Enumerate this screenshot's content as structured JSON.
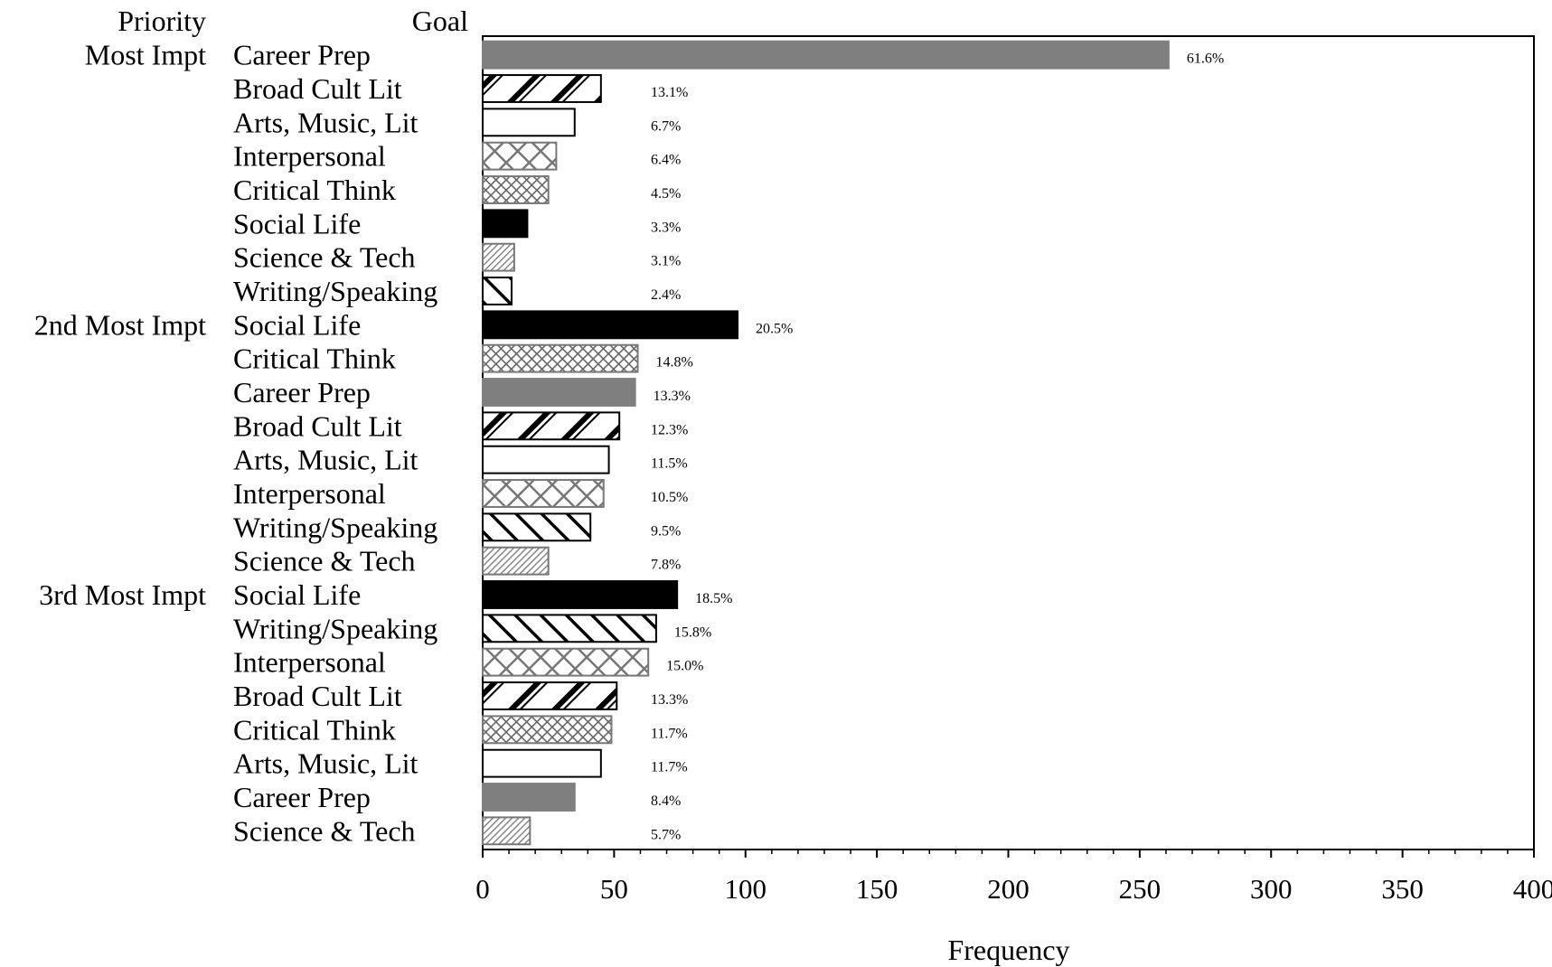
{
  "chart_data": {
    "type": "bar",
    "orientation": "horizontal",
    "headers": {
      "priority": "Priority",
      "goal": "Goal"
    },
    "xlabel": "Frequency",
    "xlim": [
      0,
      400
    ],
    "xticks": [
      "0",
      "50",
      "100",
      "150",
      "200",
      "250",
      "300",
      "350",
      "400"
    ],
    "grid": false,
    "groups": [
      {
        "priority": "Most Impt",
        "rows": [
          {
            "goal": "Career Prep",
            "value": 261,
            "pct": "61.6%",
            "pattern": "gray"
          },
          {
            "goal": "Broad Cult Lit",
            "value": 45,
            "pct": "13.1%",
            "pattern": "diag-bold"
          },
          {
            "goal": "Arts, Music, Lit",
            "value": 35,
            "pct": "6.7%",
            "pattern": "white"
          },
          {
            "goal": "Interpersonal",
            "value": 28,
            "pct": "6.4%",
            "pattern": "cross-large"
          },
          {
            "goal": "Critical Think",
            "value": 25,
            "pct": "4.5%",
            "pattern": "cross-small"
          },
          {
            "goal": "Social Life",
            "value": 17,
            "pct": "3.3%",
            "pattern": "black"
          },
          {
            "goal": "Science & Tech",
            "value": 12,
            "pct": "3.1%",
            "pattern": "diag-fine"
          },
          {
            "goal": "Writing/Speaking",
            "value": 11,
            "pct": "2.4%",
            "pattern": "backdiag"
          }
        ]
      },
      {
        "priority": "2nd Most Impt",
        "rows": [
          {
            "goal": "Social Life",
            "value": 97,
            "pct": "20.5%",
            "pattern": "black"
          },
          {
            "goal": "Critical Think",
            "value": 59,
            "pct": "14.8%",
            "pattern": "cross-small"
          },
          {
            "goal": "Career Prep",
            "value": 58,
            "pct": "13.3%",
            "pattern": "gray"
          },
          {
            "goal": "Broad Cult Lit",
            "value": 52,
            "pct": "12.3%",
            "pattern": "diag-bold"
          },
          {
            "goal": "Arts, Music, Lit",
            "value": 48,
            "pct": "11.5%",
            "pattern": "white"
          },
          {
            "goal": "Interpersonal",
            "value": 46,
            "pct": "10.5%",
            "pattern": "cross-large"
          },
          {
            "goal": "Writing/Speaking",
            "value": 41,
            "pct": "9.5%",
            "pattern": "backdiag"
          },
          {
            "goal": "Science & Tech",
            "value": 25,
            "pct": "7.8%",
            "pattern": "diag-fine"
          }
        ]
      },
      {
        "priority": "3rd Most Impt",
        "rows": [
          {
            "goal": "Social Life",
            "value": 74,
            "pct": "18.5%",
            "pattern": "black"
          },
          {
            "goal": "Writing/Speaking",
            "value": 66,
            "pct": "15.8%",
            "pattern": "backdiag"
          },
          {
            "goal": "Interpersonal",
            "value": 63,
            "pct": "15.0%",
            "pattern": "cross-large"
          },
          {
            "goal": "Broad Cult Lit",
            "value": 51,
            "pct": "13.3%",
            "pattern": "diag-bold"
          },
          {
            "goal": "Critical Think",
            "value": 49,
            "pct": "11.7%",
            "pattern": "cross-small"
          },
          {
            "goal": "Arts, Music, Lit",
            "value": 45,
            "pct": "11.7%",
            "pattern": "white"
          },
          {
            "goal": "Career Prep",
            "value": 35,
            "pct": "8.4%",
            "pattern": "gray"
          },
          {
            "goal": "Science & Tech",
            "value": 18,
            "pct": "5.7%",
            "pattern": "diag-fine"
          }
        ]
      }
    ]
  }
}
